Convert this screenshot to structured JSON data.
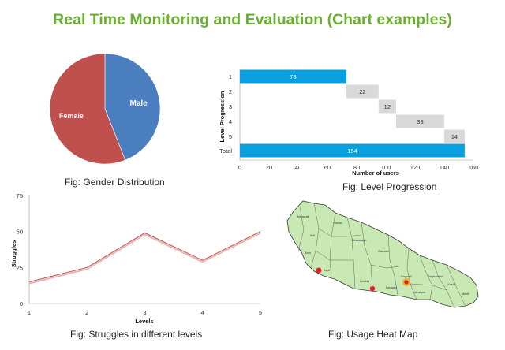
{
  "page": {
    "title": "Real Time Monitoring and Evaluation (Chart examples)"
  },
  "chart_data": [
    {
      "type": "pie",
      "caption": "Fig: Gender Distribution",
      "slices": [
        {
          "label": "Male",
          "value": 44,
          "color": "#4a7ebf"
        },
        {
          "label": "Female",
          "value": 56,
          "color": "#c0504d"
        }
      ]
    },
    {
      "type": "bar",
      "orientation": "horizontal",
      "caption": "Fig: Level Progression",
      "categories": [
        "1",
        "2",
        "3",
        "4",
        "5",
        "Total"
      ],
      "values": [
        73,
        22,
        12,
        33,
        14,
        154
      ],
      "offsets": [
        0,
        73,
        95,
        107,
        140,
        0
      ],
      "colors": [
        "#0aa0df",
        "#d9d9d9",
        "#d9d9d9",
        "#d9d9d9",
        "#d9d9d9",
        "#0aa0df"
      ],
      "xlabel": "Number of users",
      "ylabel": "Level Progression",
      "xlim": [
        0,
        160
      ],
      "xticks": [
        0,
        20,
        40,
        60,
        80,
        100,
        120,
        140,
        160
      ]
    },
    {
      "type": "line",
      "caption": "Fig: Struggles in different levels",
      "x": [
        1,
        2,
        3,
        4,
        5
      ],
      "y": [
        15,
        25,
        49,
        30,
        50
      ],
      "xlabel": "Levels",
      "ylabel": "Struggles",
      "ylim": [
        0,
        75
      ],
      "yticks": [
        0,
        25,
        50,
        75
      ],
      "color": "#c0504d"
    },
    {
      "type": "heatmap",
      "caption": "Fig:  Usage  Heat Map",
      "regions": [
        "Mahakali",
        "Seti",
        "Karnali",
        "Bheri",
        "Rapti",
        "Dhawalagiri",
        "Gandaki",
        "Lumbini",
        "Bagmati",
        "Narayani",
        "Janakpur",
        "Sagarmatha",
        "Koshi",
        "Mechi"
      ],
      "hotspot_color": "#e8202a"
    }
  ]
}
